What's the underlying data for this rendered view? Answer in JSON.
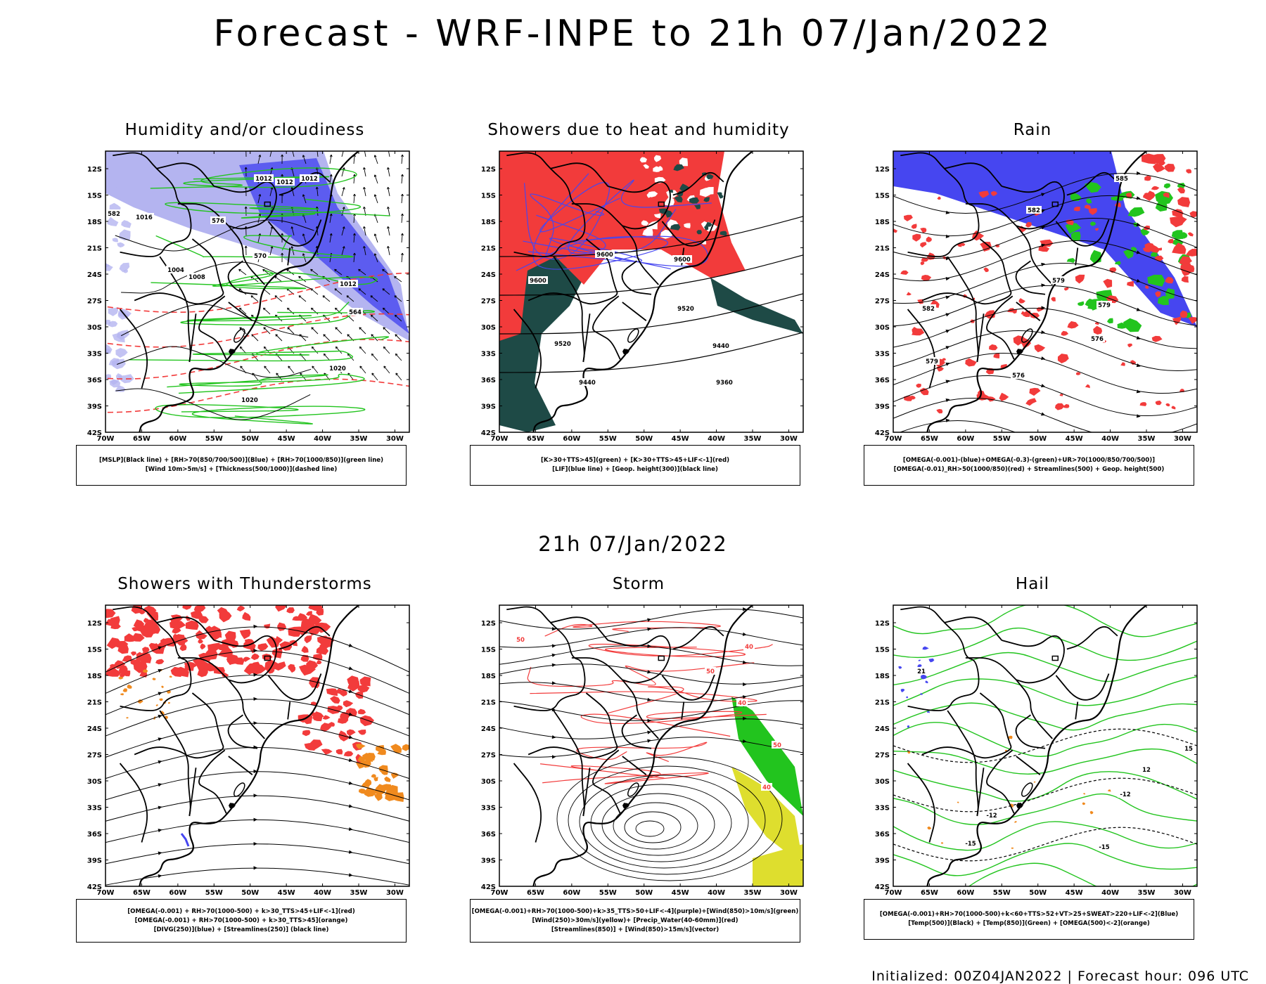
{
  "header": {
    "title": "Forecast - WRF-INPE to 21h 07/Jan/2022",
    "subtitle": "21h 07/Jan/2022"
  },
  "axes": {
    "lat_labels": [
      "12S",
      "15S",
      "18S",
      "21S",
      "24S",
      "27S",
      "30S",
      "33S",
      "36S",
      "39S",
      "42S"
    ],
    "lon_labels": [
      "70W",
      "65W",
      "60W",
      "55W",
      "50W",
      "45W",
      "40W",
      "35W",
      "30W"
    ]
  },
  "panels": [
    {
      "id": "humidity",
      "title": "Humidity and/or cloudiness",
      "legend": [
        "[MSLP](Black line) + [RH>70(850/700/500)](Blue) + [RH>70(1000/850)](green line)",
        "[Wind 10m>5m/s] + [Thickness(500/1000)](dashed line)"
      ],
      "contour_labels": [
        "1012",
        "1012",
        "1012",
        "1016",
        "1004",
        "1008",
        "1012",
        "1020",
        "1020",
        "576",
        "570",
        "564",
        "582"
      ]
    },
    {
      "id": "showers",
      "title": "Showers due to heat and humidity",
      "legend": [
        "[K>30+TTS>45](green) + [K>30+TTS>45+LIF<-1](red)",
        "[LIF](blue line) + [Geop. height(300)](black line)"
      ],
      "contour_labels": [
        "9600",
        "9600",
        "9600",
        "9520",
        "9520",
        "9440",
        "9440",
        "9360"
      ]
    },
    {
      "id": "rain",
      "title": "Rain",
      "legend": [
        "[OMEGA(-0.001)-(blue)+OMEGA(-0.3)-(green)+UR>70(1000/850/700/500)]",
        "[OMEGA(-0.01)_RH>50(1000/850)(red) + Streamlines(500) + Geop. height(500)"
      ],
      "contour_labels": [
        "585",
        "582",
        "582",
        "579",
        "579",
        "576",
        "576",
        "579"
      ]
    },
    {
      "id": "thunder",
      "title": "Showers with Thunderstorms",
      "legend": [
        "[OMEGA(-0.001) + RH>70(1000-500) + k>30_TTS>45+LIF<-1](red)",
        "[OMEGA(-0.001) + RH>70(1000-500) + k>30_TTS>45](orange)",
        "[DIVG(250)](blue) + [Streamlines(250)] (black line)"
      ],
      "contour_labels": []
    },
    {
      "id": "storm",
      "title": "Storm",
      "legend": [
        "[OMEGA(-0.001)+RH>70(1000-500)+k>35_TTS>50+LIF<-4](purple)+[Wind(850)>10m/s](green)",
        "[Wind(250)>30m/s](yellow)+ [Precip_Water(40-60mm)](red)",
        "[Streamlines(850)] + [Wind(850)>15m/s](vector)"
      ],
      "contour_labels": [
        "50",
        "40",
        "50",
        "40",
        "50",
        "40"
      ]
    },
    {
      "id": "hail",
      "title": "Hail",
      "legend": [
        "[OMEGA(-0.001)+RH>70(1000-500)+k<60+TTS>52+VT>25+SWEAT>220+LIF<-2](Blue)",
        "[Temp(500)](Black) + [Temp(850)](Green) + [OMEGA(500)<-2](orange)"
      ],
      "contour_labels": [
        "-12",
        "-12",
        "-15",
        "-15",
        "15",
        "12",
        "21"
      ]
    }
  ],
  "footer": {
    "text": "Initialized: 00Z04JAN2022 | Forecast hour: 096 UTC"
  },
  "colors": {
    "red": "#f23b3b",
    "blue": "#4646f0",
    "green": "#22c41e",
    "dark_green": "#1e4a46",
    "orange": "#f08a1e",
    "yellow": "#dede2e",
    "light_blue": "#b4b4f0"
  }
}
